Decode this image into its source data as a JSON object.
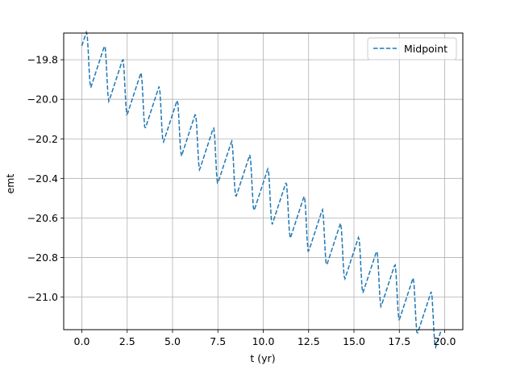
{
  "chart_data": {
    "type": "line",
    "title": "",
    "xlabel": "t (yr)",
    "ylabel": "emt",
    "xlim": [
      -1.0,
      21.0
    ],
    "ylim": [
      -21.165,
      -19.665
    ],
    "xticks": [
      0.0,
      2.5,
      5.0,
      7.5,
      10.0,
      12.5,
      15.0,
      17.5,
      20.0
    ],
    "xtick_labels": [
      "0.0",
      "2.5",
      "5.0",
      "7.5",
      "10.0",
      "12.5",
      "15.0",
      "17.5",
      "20.0"
    ],
    "yticks": [
      -19.8,
      -20.0,
      -20.2,
      -20.4,
      -20.6,
      -20.8,
      -21.0
    ],
    "ytick_labels": [
      "−19.8",
      "−20.0",
      "−20.2",
      "−20.4",
      "−20.6",
      "−20.8",
      "−21.0"
    ],
    "grid": true,
    "legend": {
      "position": "top-right",
      "entries": [
        "Midpoint"
      ]
    },
    "series": [
      {
        "name": "Midpoint",
        "color": "#1f77b4",
        "linestyle": "dashed",
        "model": {
          "t_start": 0.0,
          "t_end": 19.8,
          "start_value": -19.73,
          "end_value": -21.1,
          "annual_step_fraction": 0.35,
          "period_yr": 1.0,
          "samples": 400
        }
      }
    ]
  }
}
